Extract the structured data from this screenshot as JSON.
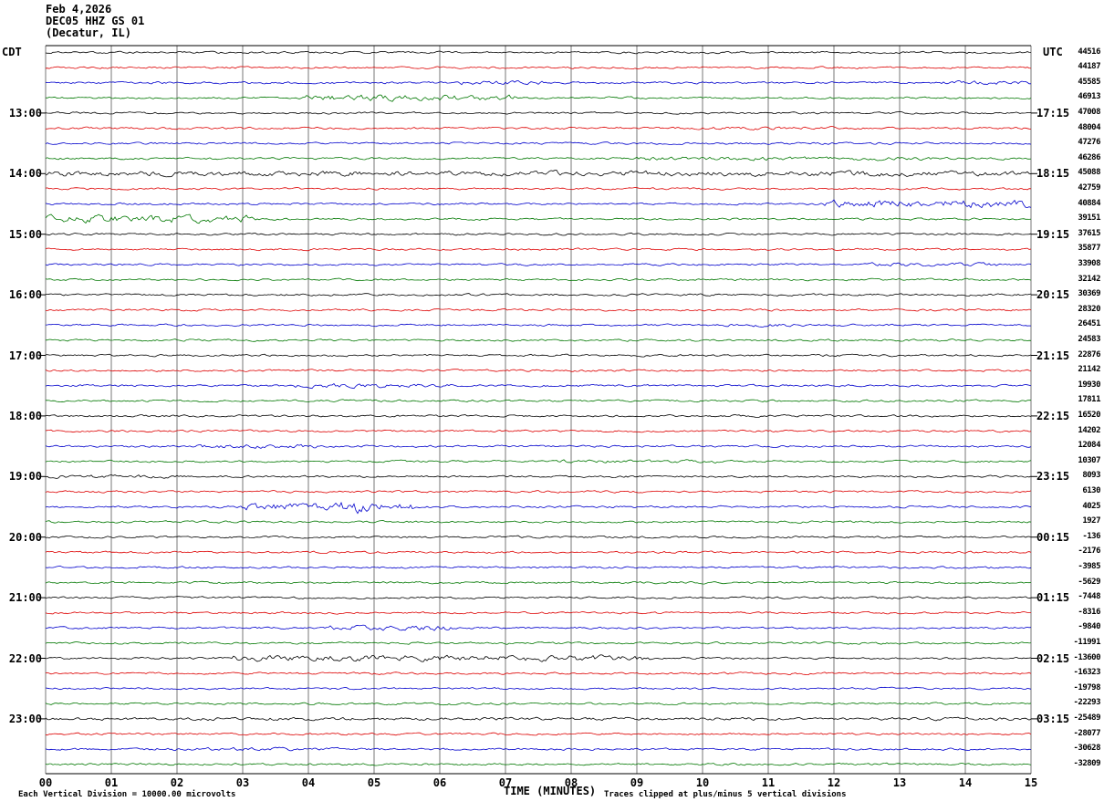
{
  "header": {
    "date": "Feb 4,2026",
    "station": "DEC05 HHZ GS 01",
    "location": "(Decatur, IL)"
  },
  "axis": {
    "left_timezone": "CDT",
    "right_timezone": "UTC",
    "x_title": "TIME (MINUTES)"
  },
  "footer": {
    "scale_note": "Each Vertical Division = 10000.00 microvolts",
    "clip_note": "Traces clipped at plus/minus 5 vertical divisions"
  },
  "chart_data": {
    "type": "line",
    "title": "DEC05 HHZ GS 01 helicorder seismogram",
    "x_range_minutes": [
      0,
      15
    ],
    "minutes_per_line": 15,
    "num_traces": 48,
    "microvolts_per_division": 10000.0,
    "clip_divisions": 5,
    "x_tick_labels": [
      "00",
      "01",
      "02",
      "03",
      "04",
      "05",
      "06",
      "07",
      "08",
      "09",
      "10",
      "11",
      "12",
      "13",
      "14",
      "15"
    ],
    "color_cycle": [
      "#000000",
      "#dd0000",
      "#0000cc",
      "#007700"
    ],
    "hour_rows": [
      4,
      8,
      12,
      16,
      20,
      24,
      28,
      32,
      36,
      40,
      44
    ],
    "left_hour_labels": [
      "13:00",
      "14:00",
      "15:00",
      "16:00",
      "17:00",
      "18:00",
      "19:00",
      "20:00",
      "21:00",
      "22:00",
      "23:00"
    ],
    "right_hour_labels": [
      "17:15",
      "18:15",
      "19:15",
      "20:15",
      "21:15",
      "22:15",
      "23:15",
      "00:15",
      "01:15",
      "02:15",
      "03:15"
    ],
    "trace_right_values": [
      44516,
      44187,
      45585,
      46913,
      47008,
      48004,
      47276,
      46286,
      45088,
      42759,
      40884,
      39151,
      37615,
      35877,
      33908,
      32142,
      30369,
      28320,
      26451,
      24583,
      22876,
      21142,
      19930,
      17811,
      16520,
      14202,
      12084,
      10307,
      8093,
      6130,
      4025,
      1927,
      -136,
      -2176,
      -3985,
      -5629,
      -7448,
      -8316,
      -9840,
      -11991,
      -13600,
      -16323,
      -19798,
      -22293,
      -25489,
      -28077,
      -30628,
      -32809
    ],
    "base_noise_amp": 0.9,
    "noise_bursts": [
      {
        "row": 2,
        "start": 6.3,
        "end": 7.6,
        "amp": 1.8
      },
      {
        "row": 2,
        "start": 13.6,
        "end": 15,
        "amp": 1.6
      },
      {
        "row": 3,
        "start": 3.9,
        "end": 7.2,
        "amp": 2.6
      },
      {
        "row": 5,
        "start": 9.8,
        "end": 12.0,
        "amp": 1.4
      },
      {
        "row": 7,
        "start": 9.0,
        "end": 13.5,
        "amp": 1.6
      },
      {
        "row": 8,
        "start": 0,
        "end": 15,
        "amp": 2.2
      },
      {
        "row": 10,
        "start": 11.8,
        "end": 15,
        "amp": 3.5
      },
      {
        "row": 11,
        "start": 0,
        "end": 3.2,
        "amp": 3.2
      },
      {
        "row": 14,
        "start": 12.5,
        "end": 14.5,
        "amp": 1.5
      },
      {
        "row": 18,
        "start": 10.3,
        "end": 11.6,
        "amp": 1.5
      },
      {
        "row": 22,
        "start": 3.8,
        "end": 6.2,
        "amp": 1.8
      },
      {
        "row": 26,
        "start": 2.3,
        "end": 4.2,
        "amp": 1.8
      },
      {
        "row": 27,
        "start": 7.8,
        "end": 10.2,
        "amp": 1.4
      },
      {
        "row": 28,
        "start": 0,
        "end": 2.0,
        "amp": 1.5
      },
      {
        "row": 30,
        "start": 3.0,
        "end": 5.6,
        "amp": 3.2
      },
      {
        "row": 30,
        "start": 4.5,
        "end": 4.9,
        "amp": 6.0
      },
      {
        "row": 38,
        "start": 4.3,
        "end": 6.2,
        "amp": 2.2
      },
      {
        "row": 40,
        "start": 2.8,
        "end": 9.2,
        "amp": 2.6
      },
      {
        "row": 44,
        "start": 0,
        "end": 15,
        "amp": 1.3
      },
      {
        "row": 46,
        "start": 1.5,
        "end": 4.5,
        "amp": 1.4
      }
    ]
  }
}
